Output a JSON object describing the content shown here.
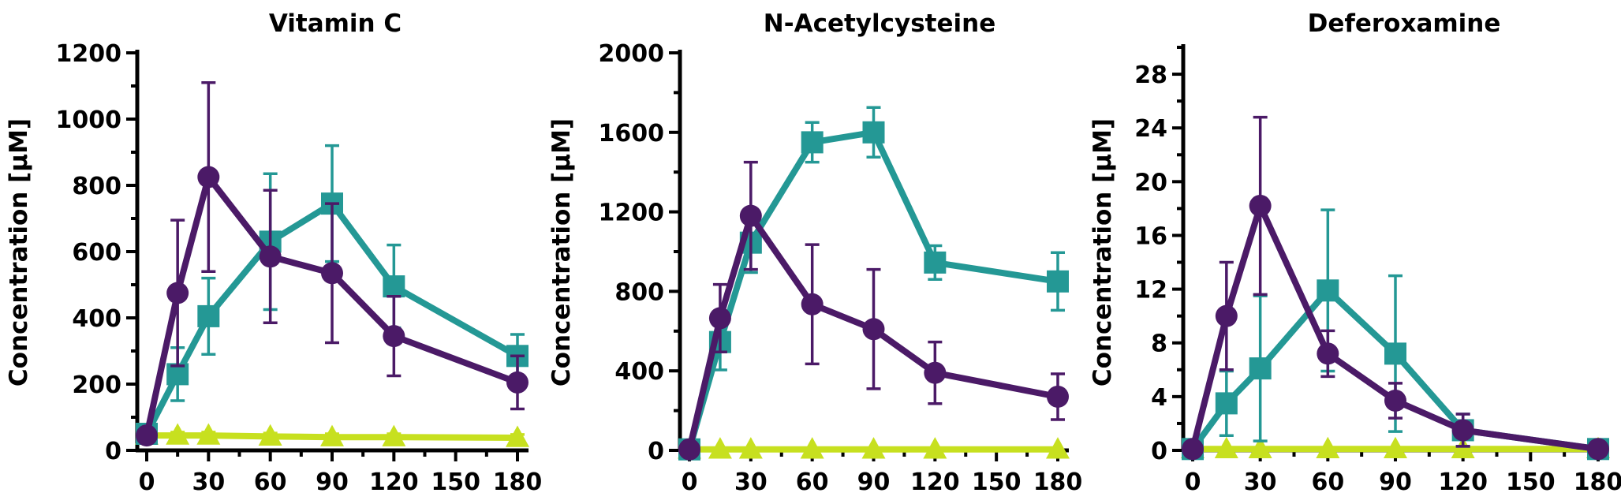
{
  "colors": {
    "series_circle": "#4b1a67",
    "series_square": "#249895",
    "series_triangle": "#c7e01f",
    "axis": "#000000"
  },
  "chart_data": [
    {
      "type": "line",
      "title": "Vitamin C",
      "xlabel": "",
      "ylabel": "Concentration [µM]",
      "xlim": [
        -5,
        185
      ],
      "ylim": [
        0,
        1200
      ],
      "xticks": [
        0,
        30,
        60,
        90,
        120,
        150,
        180
      ],
      "yticks": [
        0,
        200,
        400,
        600,
        800,
        1000,
        1200
      ],
      "grid": false,
      "series": [
        {
          "marker": "circle",
          "color": "#4b1a67",
          "x": [
            0,
            15,
            30,
            60,
            90,
            120,
            180
          ],
          "y": [
            45,
            475,
            825,
            585,
            535,
            345,
            205
          ],
          "err": [
            20,
            220,
            285,
            200,
            210,
            120,
            80
          ]
        },
        {
          "marker": "square",
          "color": "#249895",
          "x": [
            0,
            15,
            30,
            60,
            90,
            120,
            180
          ],
          "y": [
            50,
            230,
            405,
            630,
            745,
            495,
            285
          ],
          "err": [
            20,
            80,
            115,
            205,
            175,
            125,
            65
          ]
        },
        {
          "marker": "triangle",
          "color": "#c7e01f",
          "x": [
            0,
            15,
            30,
            60,
            90,
            120,
            180
          ],
          "y": [
            45,
            45,
            45,
            42,
            40,
            40,
            38
          ],
          "err": [
            15,
            10,
            10,
            10,
            10,
            10,
            10
          ]
        }
      ]
    },
    {
      "type": "line",
      "title": "N-Acetylcysteine",
      "xlabel": "",
      "ylabel": "Concentration [µM]",
      "xlim": [
        -5,
        185
      ],
      "ylim": [
        0,
        2000
      ],
      "xticks": [
        0,
        30,
        60,
        90,
        120,
        150,
        180
      ],
      "yticks": [
        0,
        400,
        800,
        1200,
        1600,
        2000
      ],
      "grid": false,
      "series": [
        {
          "marker": "circle",
          "color": "#4b1a67",
          "x": [
            0,
            15,
            30,
            60,
            90,
            120,
            180
          ],
          "y": [
            5,
            665,
            1180,
            735,
            610,
            390,
            270
          ],
          "err": [
            5,
            170,
            270,
            300,
            300,
            155,
            115
          ]
        },
        {
          "marker": "square",
          "color": "#249895",
          "x": [
            0,
            15,
            30,
            60,
            90,
            120,
            180
          ],
          "y": [
            5,
            545,
            1045,
            1550,
            1600,
            945,
            850
          ],
          "err": [
            5,
            140,
            150,
            100,
            125,
            85,
            145
          ]
        },
        {
          "marker": "triangle",
          "color": "#c7e01f",
          "x": [
            0,
            15,
            30,
            60,
            90,
            120,
            180
          ],
          "y": [
            5,
            5,
            5,
            5,
            5,
            5,
            5
          ],
          "err": [
            0,
            0,
            0,
            0,
            0,
            0,
            0
          ]
        }
      ]
    },
    {
      "type": "line",
      "title": "Deferoxamine",
      "xlabel": "",
      "ylabel": "Concentration [µM]",
      "xlim": [
        -5,
        185
      ],
      "ylim": [
        0,
        30
      ],
      "xticks": [
        0,
        30,
        60,
        90,
        120,
        150,
        180
      ],
      "yticks": [
        0,
        4,
        8,
        12,
        16,
        20,
        24,
        28
      ],
      "grid": false,
      "series": [
        {
          "marker": "circle",
          "color": "#4b1a67",
          "x": [
            0,
            15,
            30,
            60,
            90,
            120,
            180
          ],
          "y": [
            0.1,
            10,
            18.2,
            7.2,
            3.7,
            1.5,
            0.1
          ],
          "err": [
            0,
            4,
            6.6,
            1.7,
            1.3,
            1.2,
            0
          ]
        },
        {
          "marker": "square",
          "color": "#249895",
          "x": [
            0,
            15,
            30,
            60,
            90,
            120,
            180
          ],
          "y": [
            0.1,
            3.5,
            6.1,
            11.9,
            7.2,
            1.5,
            0.1
          ],
          "err": [
            0,
            2.4,
            5.4,
            6,
            5.8,
            1.2,
            0
          ]
        },
        {
          "marker": "triangle",
          "color": "#c7e01f",
          "x": [
            0,
            15,
            30,
            60,
            90,
            120,
            180
          ],
          "y": [
            0.1,
            0.1,
            0.1,
            0.1,
            0.1,
            0.1,
            0.1
          ],
          "err": [
            0,
            0,
            0,
            0,
            0,
            0,
            0
          ]
        }
      ]
    }
  ]
}
